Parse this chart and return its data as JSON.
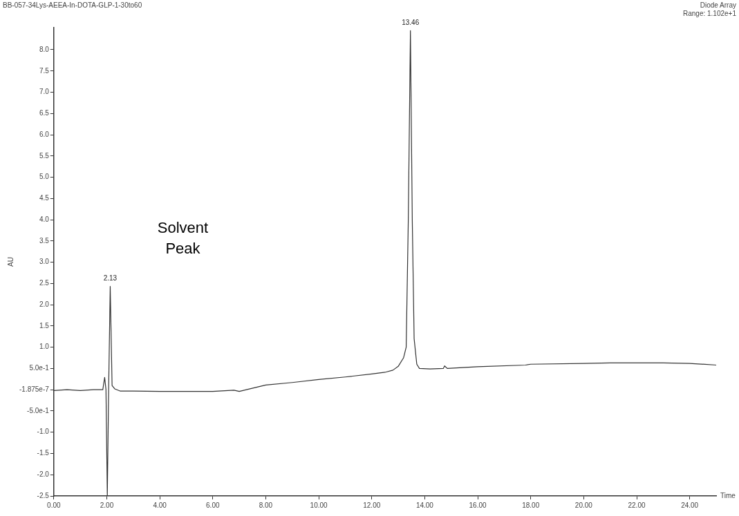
{
  "chart_data": {
    "type": "line",
    "title": "BB-057-34Lys-AEEA-In-DOTA-GLP-1-30to60",
    "subtitle": "Diode Array",
    "xlabel": "Time",
    "ylabel": "AU",
    "annotations": [
      {
        "text": "2.13",
        "x": 2.13,
        "y": 2.43
      },
      {
        "text": "13.46",
        "x": 13.46,
        "y": 8.45
      },
      "Solvent\nPeak",
      "Range: 1.102e+1"
    ],
    "x": [
      0,
      0.5,
      1,
      1.5,
      1.85,
      1.92,
      1.97,
      2.02,
      2.07,
      2.13,
      2.2,
      2.3,
      2.5,
      3,
      4,
      5,
      6,
      6.8,
      7,
      8,
      9,
      10,
      11,
      12,
      12.5,
      12.8,
      13,
      13.2,
      13.3,
      13.38,
      13.46,
      13.53,
      13.6,
      13.7,
      13.8,
      14.2,
      14.7,
      14.75,
      14.85,
      16,
      17.8,
      18,
      20,
      21,
      22,
      23,
      24,
      25
    ],
    "series": [
      {
        "color": "#333333",
        "values": [
          -0.02,
          0,
          -0.02,
          0,
          0,
          0.29,
          0,
          -2.5,
          0,
          2.43,
          0.1,
          0.02,
          -0.03,
          -0.03,
          -0.04,
          -0.04,
          -0.04,
          -0.01,
          -0.04,
          0.11,
          0.17,
          0.24,
          0.3,
          0.37,
          0.41,
          0.46,
          0.55,
          0.75,
          1.0,
          4.0,
          8.45,
          4.0,
          1.2,
          0.6,
          0.5,
          0.49,
          0.5,
          0.56,
          0.5,
          0.54,
          0.58,
          0.6,
          0.62,
          0.63,
          0.63,
          0.63,
          0.62,
          0.58
        ]
      }
    ],
    "xlim": [
      0,
      25
    ],
    "ylim": [
      -2.5,
      8.52
    ],
    "xticks": [
      {
        "value": 0,
        "label": "0.00"
      },
      {
        "value": 2,
        "label": "2.00"
      },
      {
        "value": 4,
        "label": "4.00"
      },
      {
        "value": 6,
        "label": "6.00"
      },
      {
        "value": 8,
        "label": "8.00"
      },
      {
        "value": 10,
        "label": "10.00"
      },
      {
        "value": 12,
        "label": "12.00"
      },
      {
        "value": 14,
        "label": "14.00"
      },
      {
        "value": 16,
        "label": "16.00"
      },
      {
        "value": 18,
        "label": "18.00"
      },
      {
        "value": 20,
        "label": "20.00"
      },
      {
        "value": 22,
        "label": "22.00"
      },
      {
        "value": 24,
        "label": "24.00"
      }
    ],
    "yticks": [
      -2.5,
      {
        "value": -2,
        "label": "-2.0"
      },
      -1.5,
      {
        "value": -1,
        "label": "-1.0"
      },
      {
        "value": -0.5,
        "label": "-5.0e-1"
      },
      {
        "value": -1.875e-07,
        "label": "-1.875e-7"
      },
      {
        "value": 0.5,
        "label": "5.0e-1"
      },
      {
        "value": 1,
        "label": "1.0"
      },
      1.5,
      {
        "value": 2,
        "label": "2.0"
      },
      2.5,
      {
        "value": 3,
        "label": "3.0"
      },
      3.5,
      {
        "value": 4,
        "label": "4.0"
      },
      4.5,
      {
        "value": 5,
        "label": "5.0"
      },
      5.5,
      {
        "value": 6,
        "label": "6.0"
      },
      6.5,
      {
        "value": 7,
        "label": "7.0"
      },
      7.5,
      {
        "value": 8,
        "label": "8.0"
      }
    ]
  }
}
